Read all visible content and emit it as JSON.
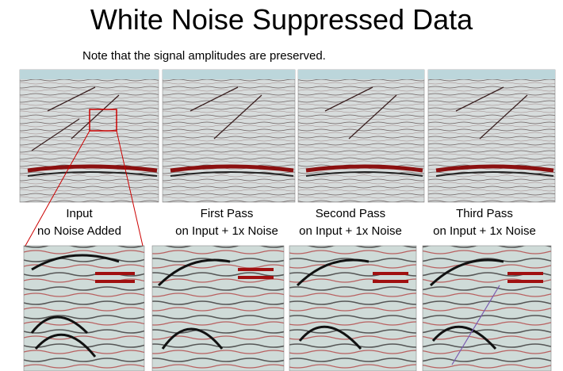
{
  "title": "White Noise Suppressed Data",
  "note": "Note that the signal amplitudes are preserved.",
  "panels": [
    {
      "label_line1": "Input",
      "label_line2": "no Noise Added"
    },
    {
      "label_line1": "First Pass",
      "label_line2": "on Input + 1x Noise"
    },
    {
      "label_line1": "Second Pass",
      "label_line2": "on Input + 1x Noise"
    },
    {
      "label_line1": "Third Pass",
      "label_line2": "on Input + 1x Noise"
    }
  ]
}
